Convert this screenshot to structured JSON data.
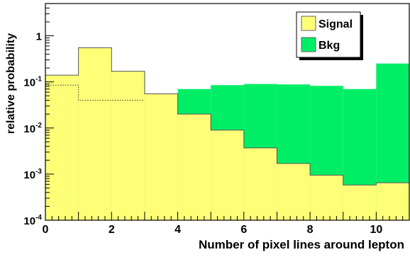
{
  "chart_data": {
    "type": "histogram",
    "title": "",
    "xlabel": "Number of pixel lines around lepton",
    "ylabel": "relative probability",
    "xlim": [
      0,
      11
    ],
    "ylim": [
      0.0001,
      5
    ],
    "yscale": "log",
    "grid": false,
    "legend_position": "top-right",
    "bin_edges": [
      0,
      1,
      2,
      3,
      4,
      5,
      6,
      7,
      8,
      9,
      10,
      11
    ],
    "series": [
      {
        "name": "Bkg",
        "color": "#00ee66",
        "values": [
          0.14,
          0.55,
          0.17,
          0.055,
          0.07,
          0.085,
          0.09,
          0.088,
          0.082,
          0.07,
          0.25
        ]
      },
      {
        "name": "Signal",
        "color": "#ffff77",
        "values": [
          0.14,
          0.55,
          0.17,
          0.055,
          0.02,
          0.009,
          0.0037,
          0.0017,
          0.00095,
          0.00058,
          0.00065
        ]
      }
    ],
    "dotted_line_values": [
      0.085,
      0.04,
      0.04
    ],
    "x_ticks": [
      {
        "value": 0,
        "label": "0"
      },
      {
        "value": 2,
        "label": "2"
      },
      {
        "value": 4,
        "label": "4"
      },
      {
        "value": 6,
        "label": "6"
      },
      {
        "value": 8,
        "label": "8"
      },
      {
        "value": 10,
        "label": "10"
      }
    ],
    "y_ticks": [
      {
        "value": 0.0001,
        "base": "10",
        "exp": "-4"
      },
      {
        "value": 0.001,
        "base": "10",
        "exp": "-3"
      },
      {
        "value": 0.01,
        "base": "10",
        "exp": "-2"
      },
      {
        "value": 0.1,
        "base": "10",
        "exp": "-1"
      },
      {
        "value": 1,
        "base": "1",
        "exp": ""
      }
    ]
  }
}
